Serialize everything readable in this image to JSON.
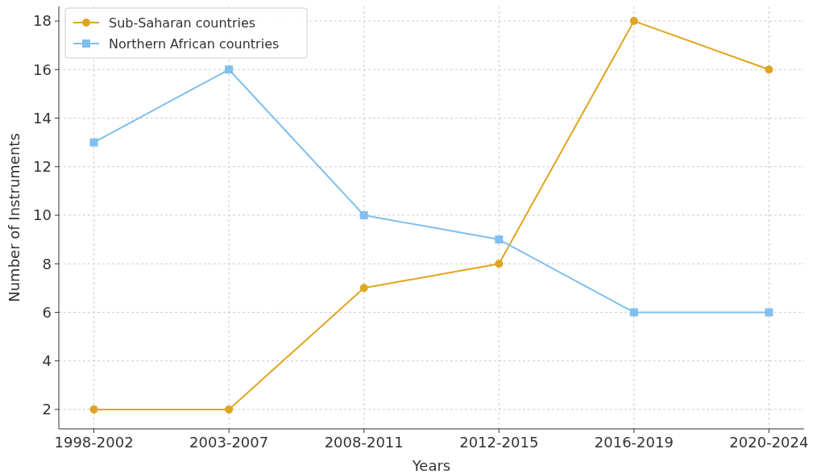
{
  "chart_data": {
    "type": "line",
    "xlabel": "Years",
    "ylabel": "Number of Instruments",
    "categories": [
      "1998-2002",
      "2003-2007",
      "2008-2011",
      "2012-2015",
      "2016-2019",
      "2020-2024"
    ],
    "series": [
      {
        "name": "Sub-Saharan countries",
        "color": "#e0a520",
        "marker": "circle",
        "values": [
          2,
          2,
          7,
          8,
          18,
          16
        ]
      },
      {
        "name": "Northern African countries",
        "color": "#80bfee",
        "marker": "square",
        "values": [
          13,
          16,
          10,
          9,
          6,
          6
        ]
      }
    ],
    "ylim": [
      1.2,
      18.6
    ],
    "yticks": [
      2,
      4,
      6,
      8,
      10,
      12,
      14,
      16,
      18
    ],
    "grid": true,
    "legend": "top left",
    "line_style": "solid"
  }
}
